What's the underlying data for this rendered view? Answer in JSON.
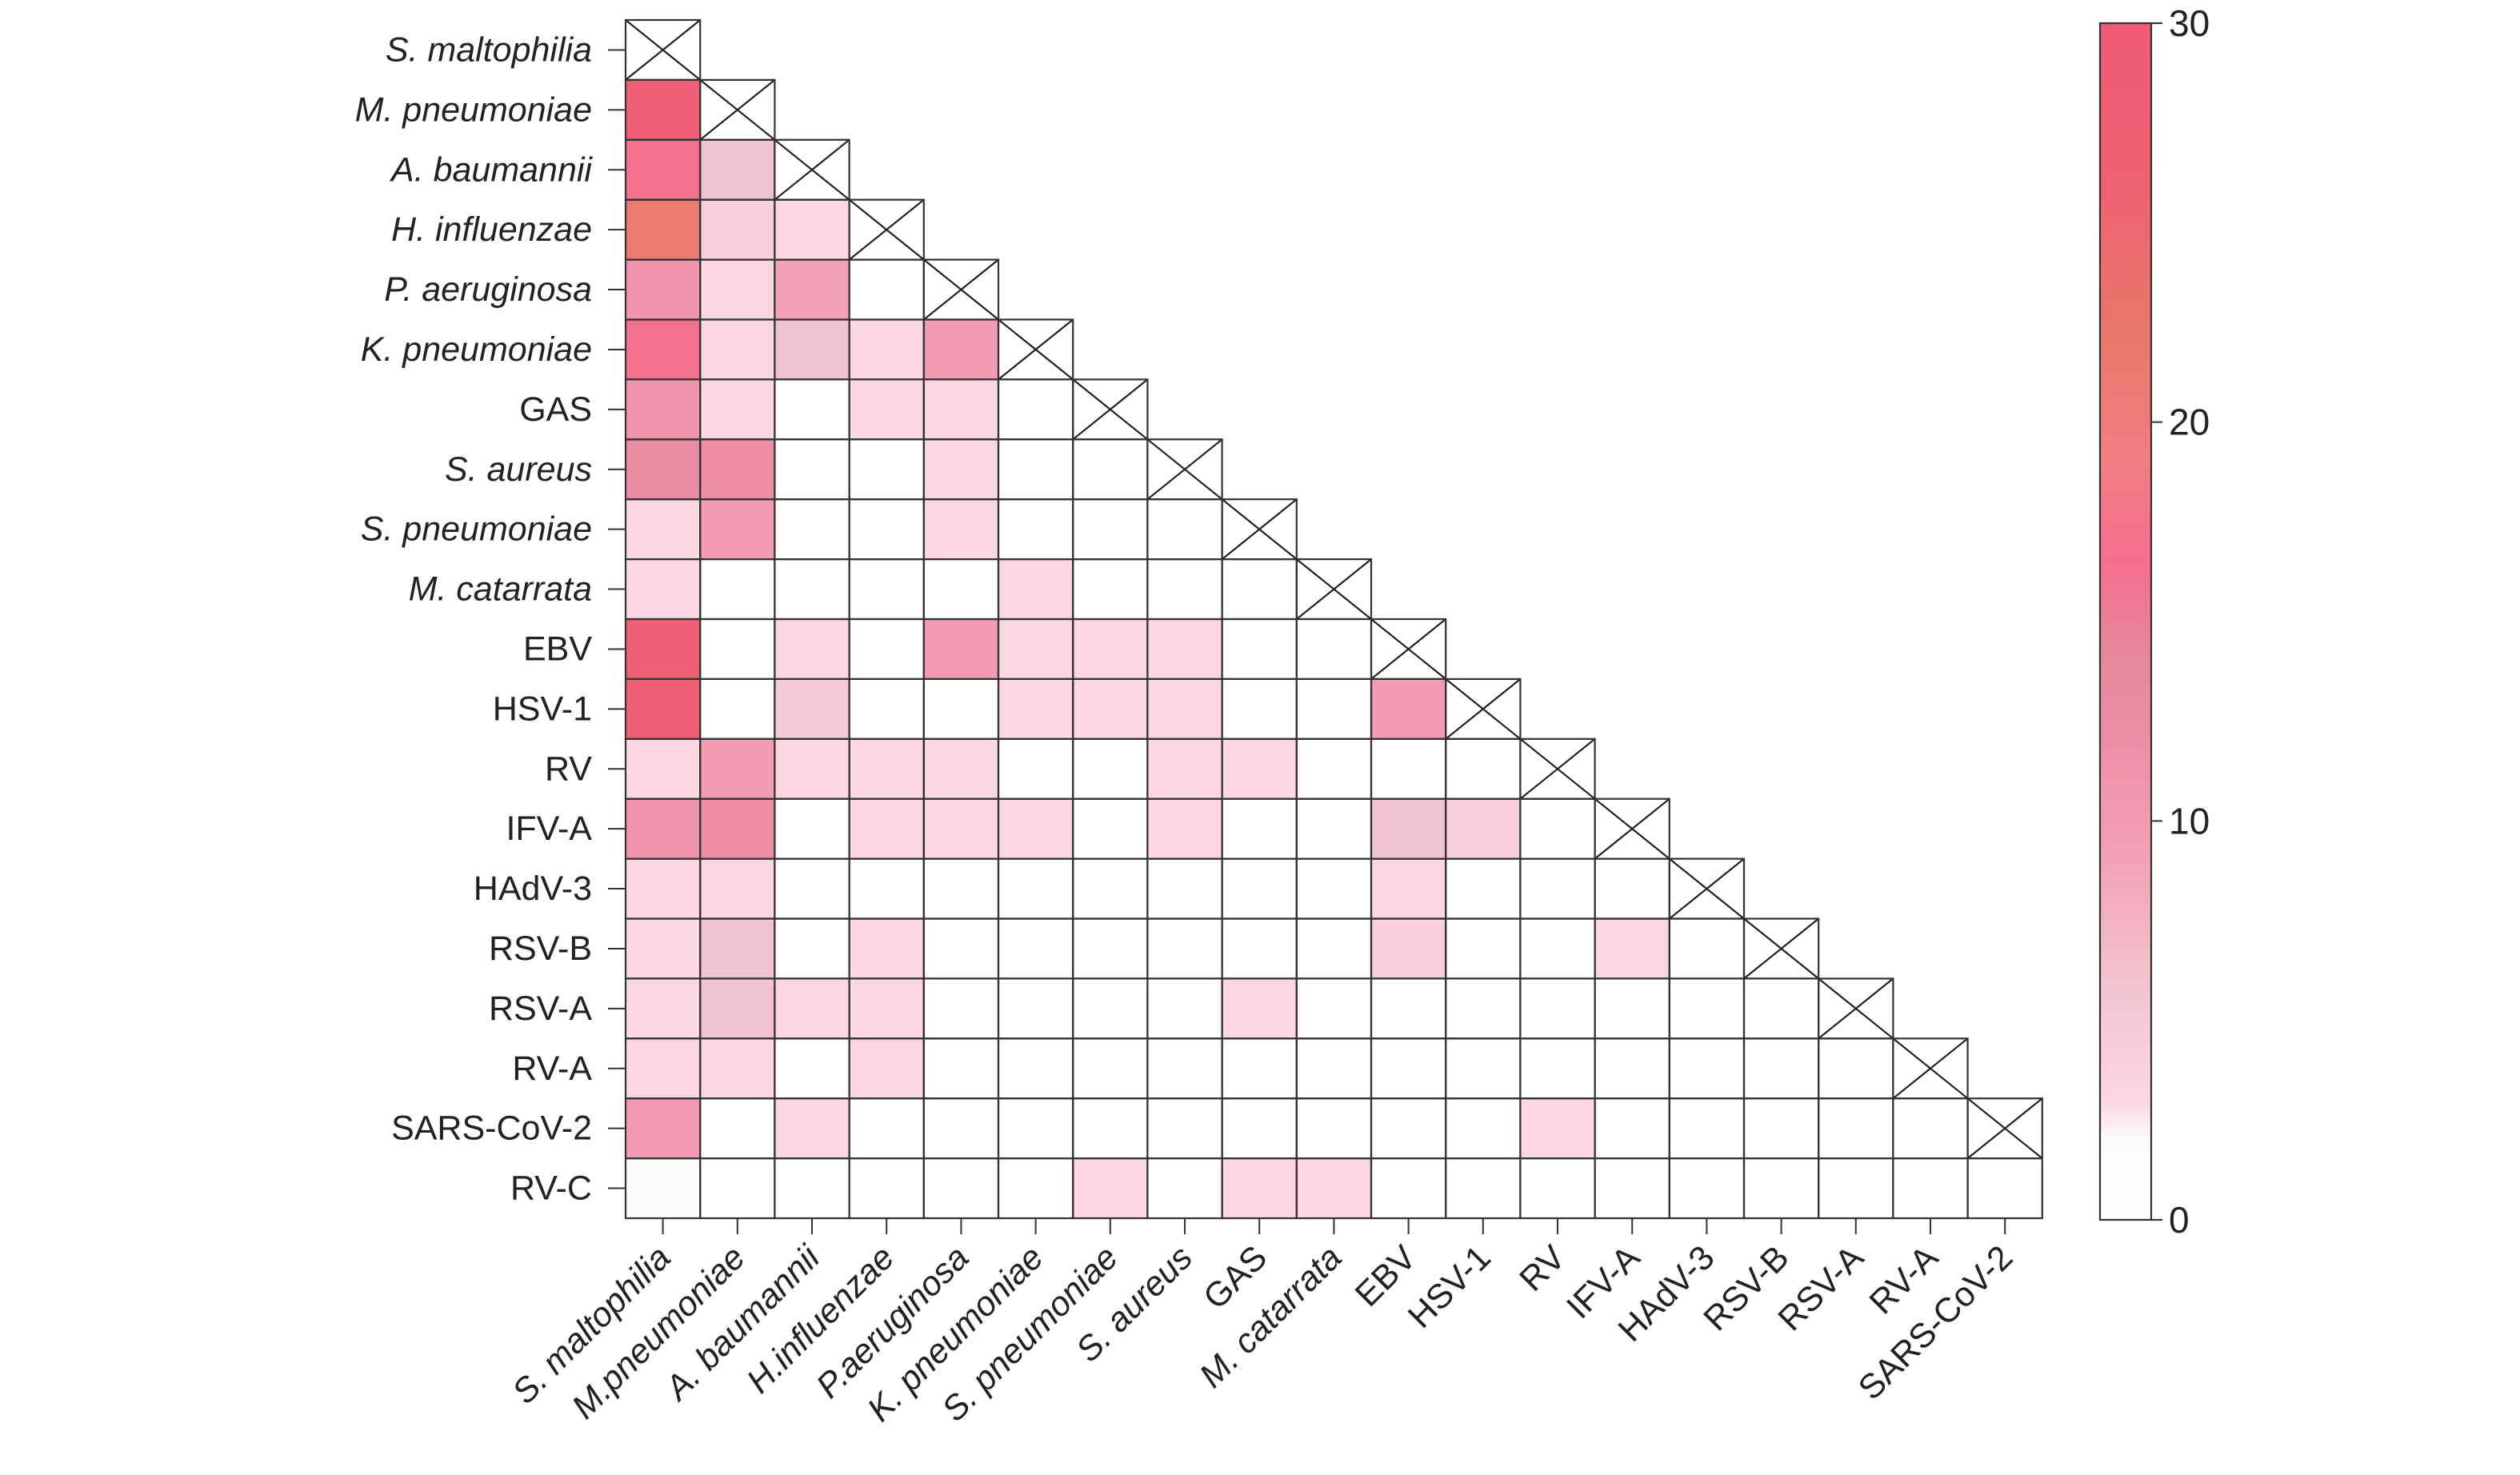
{
  "chart_data": {
    "type": "heatmap",
    "title": "",
    "xlabel": "",
    "ylabel": "",
    "row_labels": [
      {
        "text": "S. maltophilia",
        "italic": true
      },
      {
        "text": "M. pneumoniae",
        "italic": true
      },
      {
        "text": "A. baumannii",
        "italic": true
      },
      {
        "text": "H. influenzae",
        "italic": true
      },
      {
        "text": "P. aeruginosa",
        "italic": true
      },
      {
        "text": "K. pneumoniae",
        "italic": true
      },
      {
        "text": "GAS",
        "italic": false
      },
      {
        "text": "S. aureus",
        "italic": true
      },
      {
        "text": "S. pneumoniae",
        "italic": true
      },
      {
        "text": "M. catarrata",
        "italic": true
      },
      {
        "text": "EBV",
        "italic": false
      },
      {
        "text": "HSV-1",
        "italic": false
      },
      {
        "text": "RV",
        "italic": false
      },
      {
        "text": "IFV-A",
        "italic": false
      },
      {
        "text": "HAdV-3",
        "italic": false
      },
      {
        "text": "RSV-B",
        "italic": false
      },
      {
        "text": "RSV-A",
        "italic": false
      },
      {
        "text": "RV-A",
        "italic": false
      },
      {
        "text": "SARS-CoV-2",
        "italic": false
      },
      {
        "text": "RV-C",
        "italic": false
      }
    ],
    "col_labels": [
      {
        "text": "S. maltophilia",
        "italic": true
      },
      {
        "text": "M.pneumoniae",
        "italic": true
      },
      {
        "text": "A. baumannii",
        "italic": true
      },
      {
        "text": "H.influenzae",
        "italic": true
      },
      {
        "text": "P.aeruginosa",
        "italic": true
      },
      {
        "text": "K. pneumoniae",
        "italic": true
      },
      {
        "text": "S. pneumoniae",
        "italic": true
      },
      {
        "text": "S. aureus",
        "italic": true
      },
      {
        "text": "GAS",
        "italic": false
      },
      {
        "text": "M. catarrata",
        "italic": true
      },
      {
        "text": "EBV",
        "italic": false
      },
      {
        "text": "HSV-1",
        "italic": false
      },
      {
        "text": "RV",
        "italic": false
      },
      {
        "text": "IFV-A",
        "italic": false
      },
      {
        "text": "HAdV-3",
        "italic": false
      },
      {
        "text": "RSV-B",
        "italic": false
      },
      {
        "text": "RSV-A",
        "italic": false
      },
      {
        "text": "RV-A",
        "italic": false
      },
      {
        "text": "SARS-CoV-2",
        "italic": false
      }
    ],
    "values": [
      [
        null
      ],
      [
        28,
        null
      ],
      [
        17,
        6,
        null
      ],
      [
        21,
        4,
        3,
        null
      ],
      [
        11,
        3,
        9,
        0,
        null
      ],
      [
        17,
        3,
        6,
        3,
        10,
        null
      ],
      [
        11,
        3,
        0,
        3,
        3,
        0,
        null
      ],
      [
        13,
        12,
        0,
        0,
        3,
        0,
        0,
        null
      ],
      [
        3,
        10,
        0,
        0,
        3,
        0,
        0,
        0,
        null
      ],
      [
        3,
        0,
        0,
        0,
        0,
        3,
        0,
        0,
        0,
        null
      ],
      [
        28,
        0,
        3,
        0,
        10,
        3,
        3,
        3,
        0,
        0,
        null
      ],
      [
        28,
        0,
        5,
        0,
        0,
        3,
        3,
        3,
        0,
        0,
        10,
        null
      ],
      [
        3,
        10,
        3,
        3,
        3,
        0,
        0,
        3,
        3,
        0,
        0,
        0,
        null
      ],
      [
        11,
        12,
        0,
        3,
        3,
        3,
        0,
        3,
        0,
        0,
        6,
        4,
        0,
        null
      ],
      [
        3,
        3,
        0,
        0,
        0,
        0,
        0,
        0,
        0,
        0,
        3,
        0,
        0,
        0,
        null
      ],
      [
        3,
        6,
        0,
        3,
        0,
        0,
        0,
        0,
        0,
        0,
        4,
        0,
        0,
        3,
        0,
        null
      ],
      [
        3,
        6,
        3,
        3,
        0,
        0,
        0,
        0,
        3,
        0,
        0,
        0,
        0,
        0,
        0,
        0,
        null
      ],
      [
        3,
        3,
        0,
        3,
        0,
        0,
        0,
        0,
        0,
        0,
        0,
        0,
        0,
        0,
        0,
        0,
        0,
        null
      ],
      [
        10,
        0,
        3,
        0,
        0,
        0,
        0,
        0,
        0,
        0,
        0,
        0,
        3,
        0,
        0,
        0,
        0,
        0,
        null
      ],
      [
        2,
        0,
        0,
        0,
        0,
        0,
        3,
        0,
        3,
        3,
        0,
        0,
        0,
        0,
        0,
        0,
        0,
        0,
        0
      ]
    ],
    "colorbar": {
      "min": 0,
      "max": 30,
      "ticks": [
        "0",
        "10",
        "20",
        "30"
      ],
      "stops": [
        {
          "v": 0,
          "c": "#ffffff"
        },
        {
          "v": 2,
          "c": "#fdfafb"
        },
        {
          "v": 3,
          "c": "#fcd6e1"
        },
        {
          "v": 6,
          "c": "#f1c2cf"
        },
        {
          "v": 9,
          "c": "#f4a2b8"
        },
        {
          "v": 12,
          "c": "#ee8ea7"
        },
        {
          "v": 14,
          "c": "#e4899e"
        },
        {
          "v": 16.5,
          "c": "#f56e8e"
        },
        {
          "v": 19,
          "c": "#f27e84"
        },
        {
          "v": 22,
          "c": "#e8786a"
        },
        {
          "v": 26,
          "c": "#ef6272"
        },
        {
          "v": 30,
          "c": "#f05a74"
        }
      ]
    },
    "diagonal_marker": "cross",
    "grid": true
  }
}
